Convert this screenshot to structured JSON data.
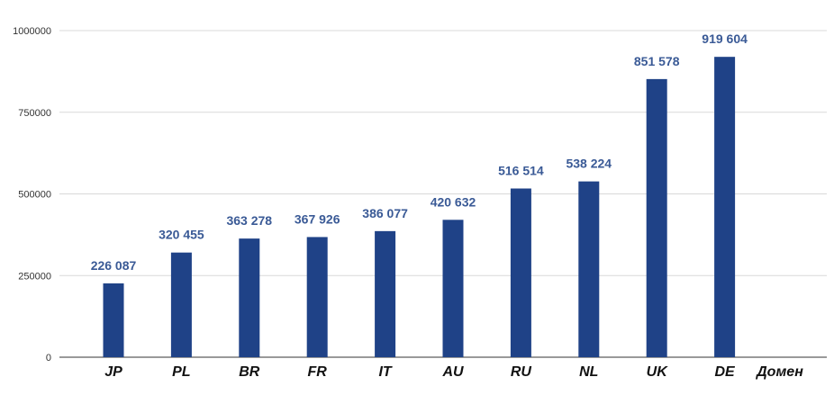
{
  "chart_data": {
    "type": "bar",
    "categories": [
      "JP",
      "PL",
      "BR",
      "FR",
      "IT",
      "AU",
      "RU",
      "NL",
      "UK",
      "DE"
    ],
    "values": [
      226087,
      320455,
      363278,
      367926,
      386077,
      420632,
      516514,
      538224,
      851578,
      919604
    ],
    "data_labels": [
      "226 087",
      "320 455",
      "363 278",
      "367 926",
      "386 077",
      "420 632",
      "516 514",
      "538 224",
      "851 578",
      "919 604"
    ],
    "title": "",
    "xlabel": "Домен",
    "ylabel": "",
    "ylim": [
      0,
      1000000
    ],
    "yticks": [
      0,
      250000,
      500000,
      750000,
      1000000
    ],
    "ytick_labels": [
      "0",
      "250000",
      "500000",
      "750000",
      "1000000"
    ],
    "grid": true,
    "bar_color": "#1f4287",
    "label_color": "#3a5a96",
    "grid_color": "#d9d9d9"
  }
}
